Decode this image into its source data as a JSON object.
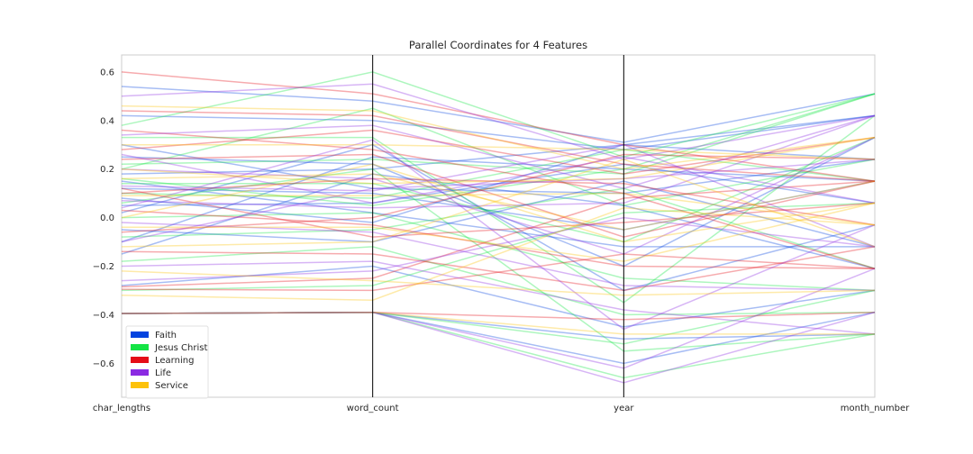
{
  "chart_data": {
    "type": "parallel_coordinates",
    "title": "Parallel Coordinates for 4 Features",
    "features": [
      "char_lengths",
      "word_count",
      "year",
      "month_number"
    ],
    "ylim": [
      -0.74,
      0.67
    ],
    "yticks": [
      {
        "value": 0.6,
        "label": "0.6"
      },
      {
        "value": 0.4,
        "label": "0.4"
      },
      {
        "value": 0.2,
        "label": "0.2"
      },
      {
        "value": 0.0,
        "label": "0.0"
      },
      {
        "value": -0.2,
        "label": "−0.2"
      },
      {
        "value": -0.4,
        "label": "−0.4"
      },
      {
        "value": -0.6,
        "label": "−0.6"
      }
    ],
    "grid": false,
    "legend_position": "lower-left",
    "classes": [
      {
        "name": "Faith",
        "color": "#0343df"
      },
      {
        "name": "Jesus Christ",
        "color": "#15e445"
      },
      {
        "name": "Learning",
        "color": "#e50d17"
      },
      {
        "name": "Life",
        "color": "#8b2be2"
      },
      {
        "name": "Service",
        "color": "#fdc20a"
      }
    ],
    "series": [
      {
        "class": "Faith",
        "values": [
          0.54,
          0.48,
          0.31,
          0.51
        ]
      },
      {
        "class": "Faith",
        "values": [
          0.42,
          0.4,
          0.28,
          0.42
        ]
      },
      {
        "class": "Faith",
        "values": [
          0.25,
          0.22,
          -0.2,
          0.33
        ]
      },
      {
        "class": "Faith",
        "values": [
          0.18,
          0.2,
          0.3,
          0.24
        ]
      },
      {
        "class": "Faith",
        "values": [
          0.12,
          0.1,
          -0.05,
          0.15
        ]
      },
      {
        "class": "Faith",
        "values": [
          0.05,
          0.06,
          0.22,
          0.06
        ]
      },
      {
        "class": "Faith",
        "values": [
          0.02,
          0.3,
          -0.3,
          -0.03
        ]
      },
      {
        "class": "Faith",
        "values": [
          -0.05,
          -0.1,
          0.15,
          -0.12
        ]
      },
      {
        "class": "Faith",
        "values": [
          -0.15,
          0.18,
          0.05,
          -0.21
        ]
      },
      {
        "class": "Faith",
        "values": [
          -0.28,
          -0.2,
          -0.45,
          -0.3
        ]
      },
      {
        "class": "Faith",
        "values": [
          -0.395,
          -0.39,
          -0.6,
          -0.39
        ]
      },
      {
        "class": "Faith",
        "values": [
          -0.395,
          -0.39,
          -0.5,
          -0.48
        ]
      },
      {
        "class": "Faith",
        "values": [
          0.3,
          0.12,
          0.1,
          0.24
        ]
      },
      {
        "class": "Faith",
        "values": [
          0.08,
          -0.02,
          0.3,
          0.42
        ]
      },
      {
        "class": "Faith",
        "values": [
          0.15,
          0.02,
          -0.12,
          -0.12
        ]
      },
      {
        "class": "Faith",
        "values": [
          -0.1,
          0.25,
          0.2,
          0.15
        ]
      },
      {
        "class": "Jesus Christ",
        "values": [
          0.38,
          0.6,
          0.25,
          0.51
        ]
      },
      {
        "class": "Jesus Christ",
        "values": [
          0.33,
          0.33,
          -0.35,
          0.42
        ]
      },
      {
        "class": "Jesus Christ",
        "values": [
          0.22,
          0.24,
          0.18,
          0.51
        ]
      },
      {
        "class": "Jesus Christ",
        "values": [
          0.14,
          0.14,
          -0.1,
          0.33
        ]
      },
      {
        "class": "Jesus Christ",
        "values": [
          0.1,
          0.08,
          0.28,
          0.15
        ]
      },
      {
        "class": "Jesus Christ",
        "values": [
          0.0,
          0.02,
          -0.25,
          -0.3
        ]
      },
      {
        "class": "Jesus Christ",
        "values": [
          -0.08,
          -0.05,
          0.12,
          -0.21
        ]
      },
      {
        "class": "Jesus Christ",
        "values": [
          -0.18,
          -0.12,
          -0.4,
          -0.39
        ]
      },
      {
        "class": "Jesus Christ",
        "values": [
          -0.3,
          -0.28,
          0.02,
          0.06
        ]
      },
      {
        "class": "Jesus Christ",
        "values": [
          -0.395,
          -0.39,
          -0.66,
          -0.48
        ]
      },
      {
        "class": "Jesus Christ",
        "values": [
          -0.395,
          -0.39,
          -0.52,
          -0.3
        ]
      },
      {
        "class": "Jesus Christ",
        "values": [
          0.2,
          0.45,
          0.05,
          0.24
        ]
      },
      {
        "class": "Jesus Christ",
        "values": [
          0.06,
          0.2,
          -0.55,
          -0.48
        ]
      },
      {
        "class": "Jesus Christ",
        "values": [
          0.16,
          0.05,
          0.2,
          0.51
        ]
      },
      {
        "class": "Learning",
        "values": [
          0.6,
          0.51,
          0.3,
          0.15
        ]
      },
      {
        "class": "Learning",
        "values": [
          0.44,
          0.42,
          0.22,
          0.15
        ]
      },
      {
        "class": "Learning",
        "values": [
          0.36,
          0.28,
          0.1,
          -0.21
        ]
      },
      {
        "class": "Learning",
        "values": [
          0.24,
          0.26,
          -0.08,
          0.15
        ]
      },
      {
        "class": "Learning",
        "values": [
          0.1,
          0.16,
          0.14,
          -0.03
        ]
      },
      {
        "class": "Learning",
        "values": [
          0.03,
          -0.03,
          -0.2,
          -0.21
        ]
      },
      {
        "class": "Learning",
        "values": [
          -0.06,
          0.0,
          0.26,
          0.24
        ]
      },
      {
        "class": "Learning",
        "values": [
          -0.14,
          -0.15,
          -0.3,
          -0.12
        ]
      },
      {
        "class": "Learning",
        "values": [
          -0.285,
          -0.25,
          0.08,
          0.15
        ]
      },
      {
        "class": "Learning",
        "values": [
          -0.295,
          -0.3,
          -0.15,
          -0.21
        ]
      },
      {
        "class": "Learning",
        "values": [
          -0.395,
          -0.39,
          -0.42,
          -0.39
        ]
      },
      {
        "class": "Learning",
        "values": [
          0.28,
          0.36,
          0.18,
          0.33
        ]
      },
      {
        "class": "Learning",
        "values": [
          0.12,
          -0.08,
          -0.02,
          0.06
        ]
      },
      {
        "class": "Life",
        "values": [
          0.5,
          0.55,
          0.24,
          0.42
        ]
      },
      {
        "class": "Life",
        "values": [
          0.34,
          0.38,
          0.12,
          0.42
        ]
      },
      {
        "class": "Life",
        "values": [
          0.2,
          0.16,
          -0.15,
          0.33
        ]
      },
      {
        "class": "Life",
        "values": [
          0.13,
          0.11,
          0.3,
          -0.12
        ]
      },
      {
        "class": "Life",
        "values": [
          0.07,
          0.04,
          0.06,
          0.42
        ]
      },
      {
        "class": "Life",
        "values": [
          -0.02,
          -0.06,
          -0.28,
          -0.3
        ]
      },
      {
        "class": "Life",
        "values": [
          -0.1,
          0.12,
          0.16,
          0.24
        ]
      },
      {
        "class": "Life",
        "values": [
          -0.2,
          -0.18,
          -0.38,
          -0.48
        ]
      },
      {
        "class": "Life",
        "values": [
          -0.26,
          -0.22,
          0.0,
          -0.12
        ]
      },
      {
        "class": "Life",
        "values": [
          -0.395,
          -0.39,
          -0.68,
          -0.39
        ]
      },
      {
        "class": "Life",
        "values": [
          -0.395,
          -0.39,
          -0.62,
          -0.21
        ]
      },
      {
        "class": "Life",
        "values": [
          0.26,
          0.06,
          0.25,
          0.06
        ]
      },
      {
        "class": "Life",
        "values": [
          0.04,
          0.32,
          -0.46,
          -0.03
        ]
      },
      {
        "class": "Service",
        "values": [
          0.46,
          0.44,
          0.2,
          0.33
        ]
      },
      {
        "class": "Service",
        "values": [
          0.3,
          0.3,
          0.28,
          0.24
        ]
      },
      {
        "class": "Service",
        "values": [
          0.16,
          0.18,
          -0.05,
          0.15
        ]
      },
      {
        "class": "Service",
        "values": [
          0.09,
          0.09,
          0.1,
          -0.03
        ]
      },
      {
        "class": "Service",
        "values": [
          -0.04,
          -0.04,
          -0.18,
          0.06
        ]
      },
      {
        "class": "Service",
        "values": [
          -0.12,
          -0.1,
          0.24,
          -0.12
        ]
      },
      {
        "class": "Service",
        "values": [
          -0.22,
          -0.26,
          -0.32,
          -0.3
        ]
      },
      {
        "class": "Service",
        "values": [
          -0.32,
          -0.34,
          0.04,
          -0.03
        ]
      },
      {
        "class": "Service",
        "values": [
          -0.395,
          -0.39,
          -0.48,
          -0.48
        ]
      },
      {
        "class": "Service",
        "values": [
          0.2,
          0.14,
          0.16,
          0.33
        ]
      },
      {
        "class": "Service",
        "values": [
          0.0,
          0.22,
          -0.1,
          0.06
        ]
      }
    ]
  }
}
